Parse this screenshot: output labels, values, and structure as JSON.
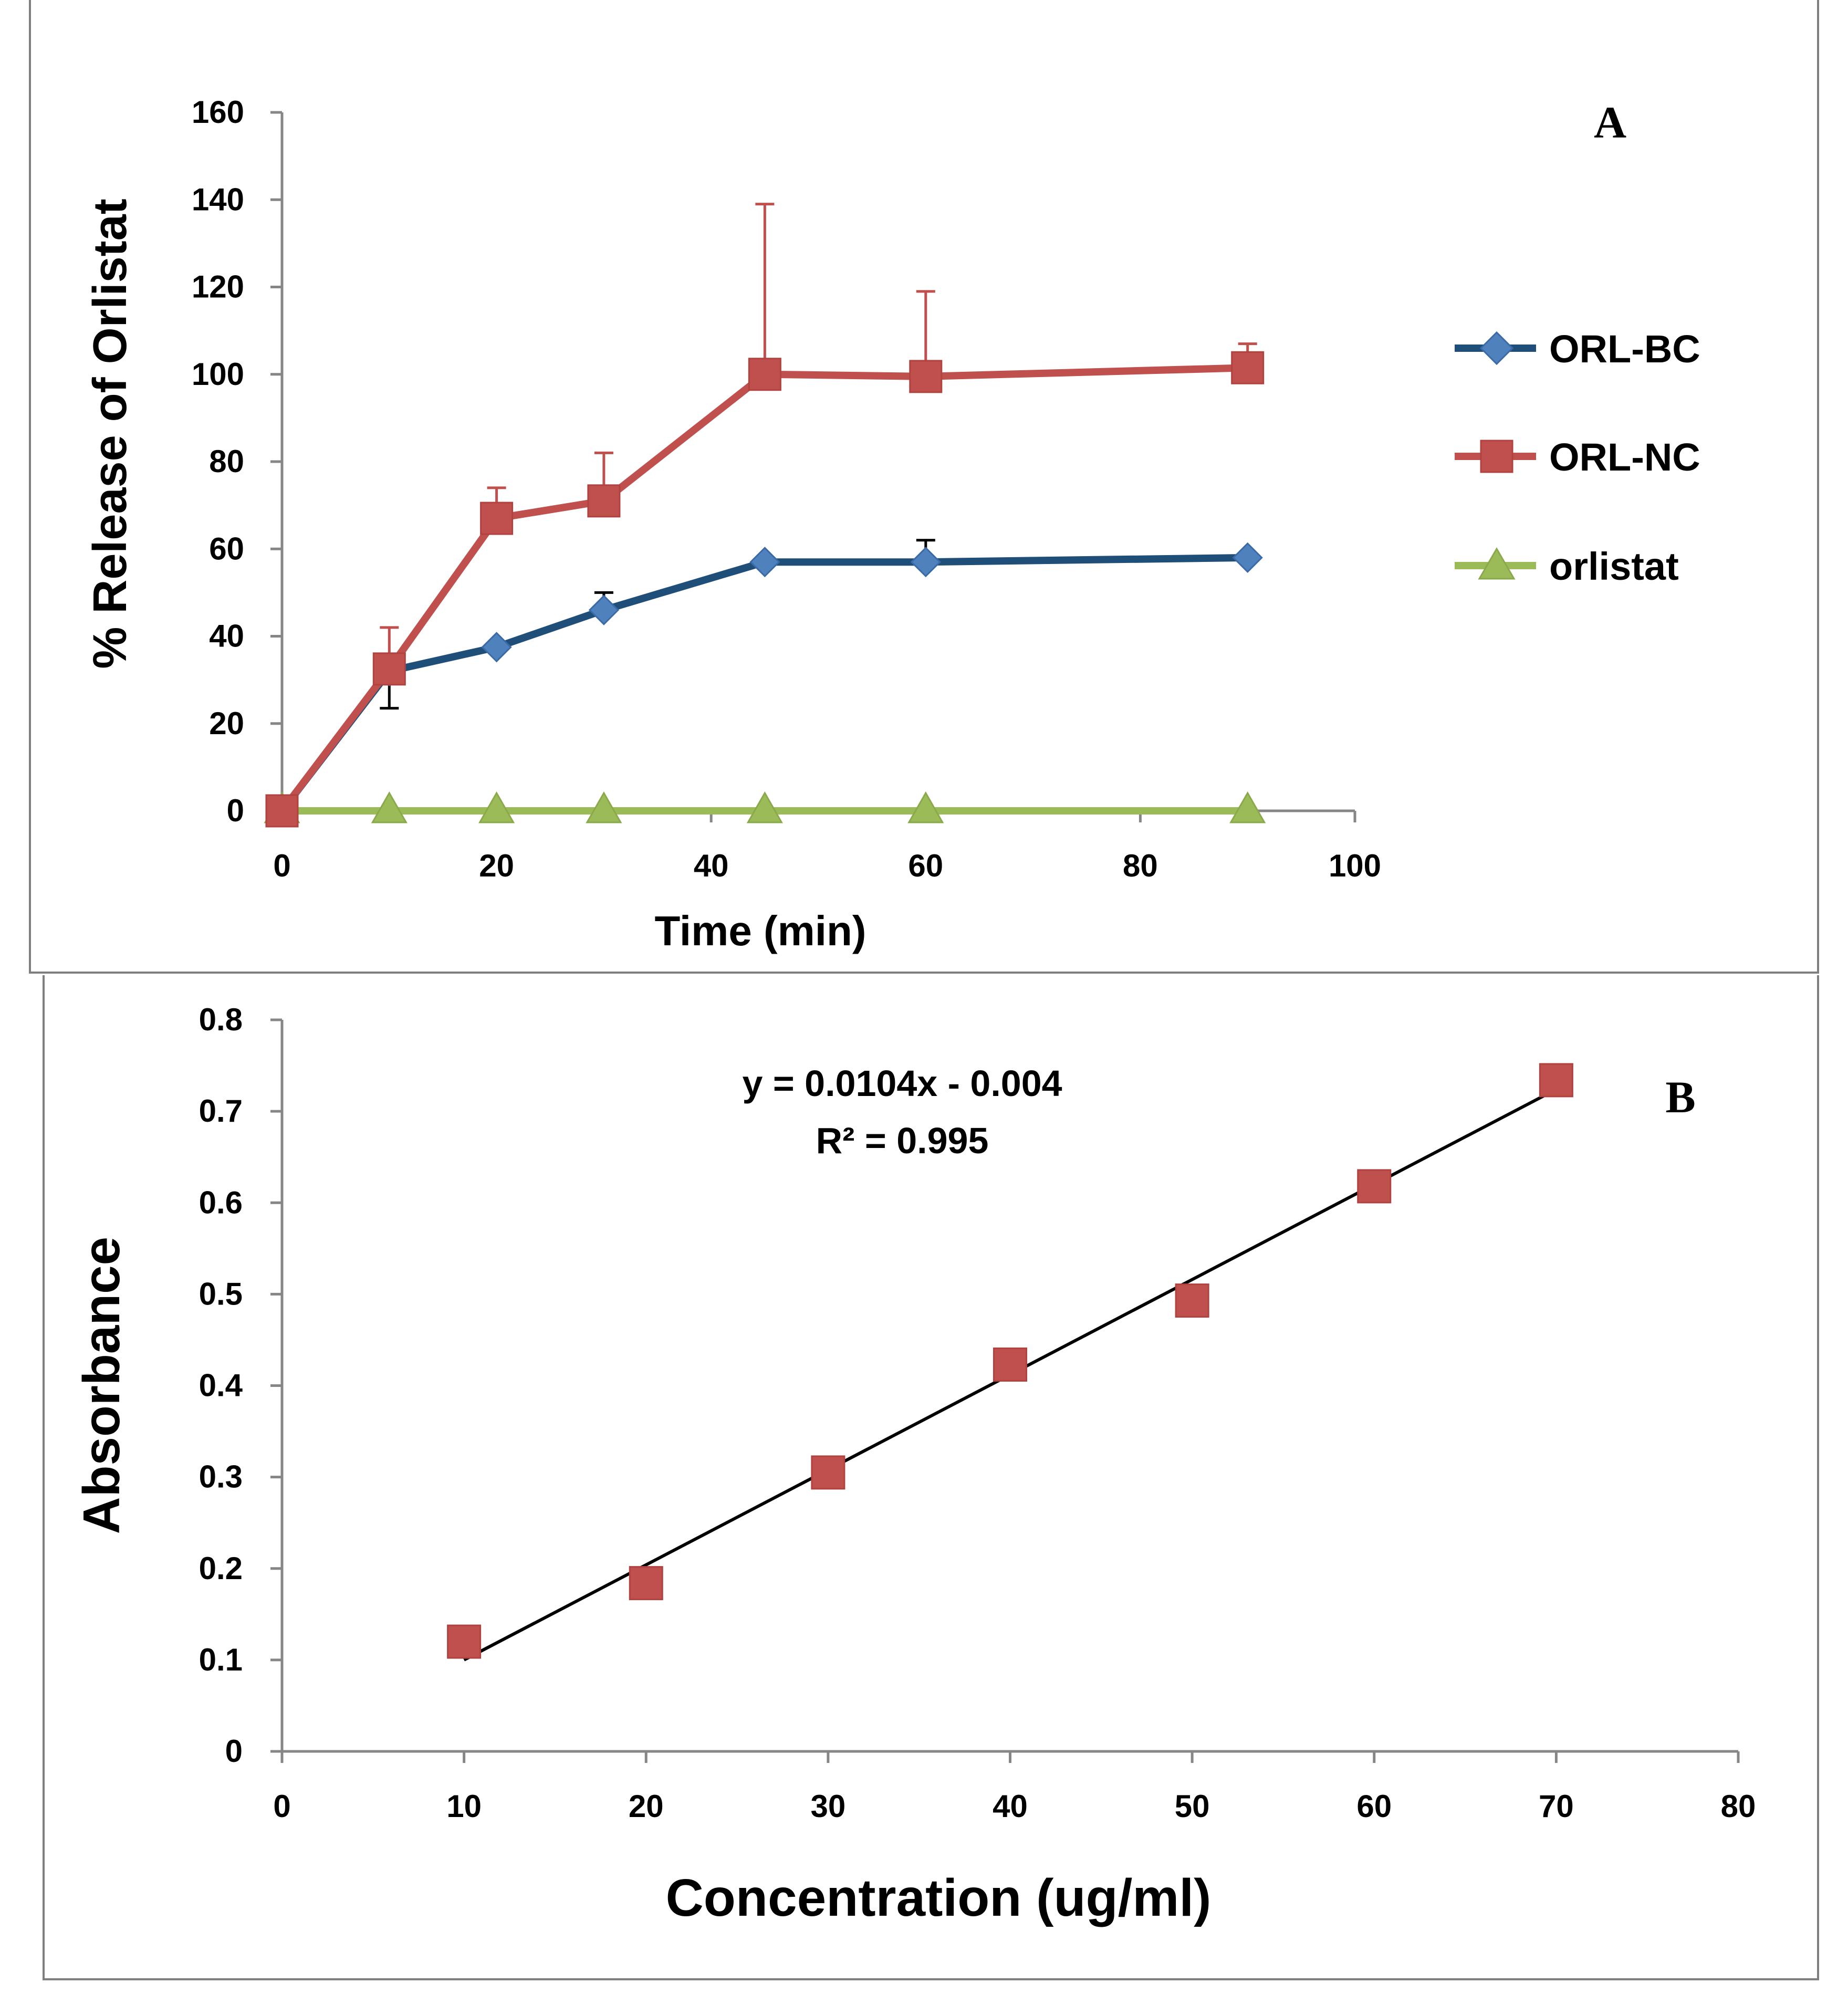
{
  "chart_data": [
    {
      "panel": "A",
      "type": "line",
      "title": "",
      "xlabel": "Time (min)",
      "ylabel": "% Release of Orlistat",
      "xlim": [
        0,
        100
      ],
      "ylim": [
        0,
        160
      ],
      "xticks": [
        0,
        20,
        40,
        60,
        80,
        100
      ],
      "yticks": [
        0,
        20,
        40,
        60,
        80,
        100,
        120,
        140,
        160
      ],
      "grid": false,
      "legend_position": "right",
      "series": [
        {
          "name": "ORL-BC",
          "color": "#1F4E79",
          "marker_color": "#4F81BD",
          "marker": "diamond",
          "x": [
            0,
            10,
            20,
            30,
            45,
            60,
            90
          ],
          "y": [
            0,
            32,
            37.5,
            46,
            57,
            57,
            58
          ],
          "error": [
            0,
            0,
            0,
            4,
            0,
            5,
            0
          ]
        },
        {
          "name": "ORL-NC",
          "color": "#C0504D",
          "marker_color": "#C0504D",
          "marker": "square",
          "x": [
            0,
            10,
            20,
            30,
            45,
            60,
            90
          ],
          "y": [
            0,
            32.5,
            67,
            71,
            100,
            99.5,
            101.5
          ],
          "error": [
            0,
            9.5,
            7,
            11,
            39,
            19.5,
            5.5
          ],
          "error_down": [
            0,
            9,
            0,
            0,
            0,
            0,
            0
          ]
        },
        {
          "name": "orlistat",
          "color": "#9BBB59",
          "marker_color": "#9BBB59",
          "marker": "triangle",
          "x": [
            0,
            10,
            20,
            30,
            45,
            60,
            90
          ],
          "y": [
            0,
            0,
            0,
            0,
            0,
            0,
            0
          ]
        }
      ]
    },
    {
      "panel": "B",
      "type": "scatter",
      "title": "",
      "xlabel": "Concentration (ug/ml)",
      "ylabel": "Absorbance",
      "xlim": [
        0,
        80
      ],
      "ylim": [
        0,
        0.8
      ],
      "xticks": [
        0,
        10,
        20,
        30,
        40,
        50,
        60,
        70,
        80
      ],
      "yticks": [
        0,
        0.1,
        0.2,
        0.3,
        0.4,
        0.5,
        0.6,
        0.7,
        0.8
      ],
      "grid": false,
      "series": [
        {
          "name": "Absorbance",
          "color": "#C0504D",
          "marker": "square",
          "x": [
            10,
            20,
            30,
            40,
            50,
            60,
            70
          ],
          "y": [
            0.12,
            0.184,
            0.305,
            0.423,
            0.493,
            0.618,
            0.734
          ]
        }
      ],
      "trendline": {
        "slope": 0.0104,
        "intercept": -0.004,
        "x_from": 10,
        "x_to": 70,
        "color": "#000000"
      },
      "annotations": [
        "y = 0.0104x - 0.004",
        "R² = 0.995"
      ]
    }
  ],
  "panel_labels": {
    "a": "A",
    "b": "B"
  },
  "tick_labels": {
    "a_y": [
      "0",
      "20",
      "40",
      "60",
      "80",
      "100",
      "120",
      "140",
      "160"
    ],
    "a_x": [
      "0",
      "20",
      "40",
      "60",
      "80",
      "100"
    ],
    "b_y": [
      "0",
      "0.1",
      "0.2",
      "0.3",
      "0.4",
      "0.5",
      "0.6",
      "0.7",
      "0.8"
    ],
    "b_x": [
      "0",
      "10",
      "20",
      "30",
      "40",
      "50",
      "60",
      "70",
      "80"
    ]
  }
}
